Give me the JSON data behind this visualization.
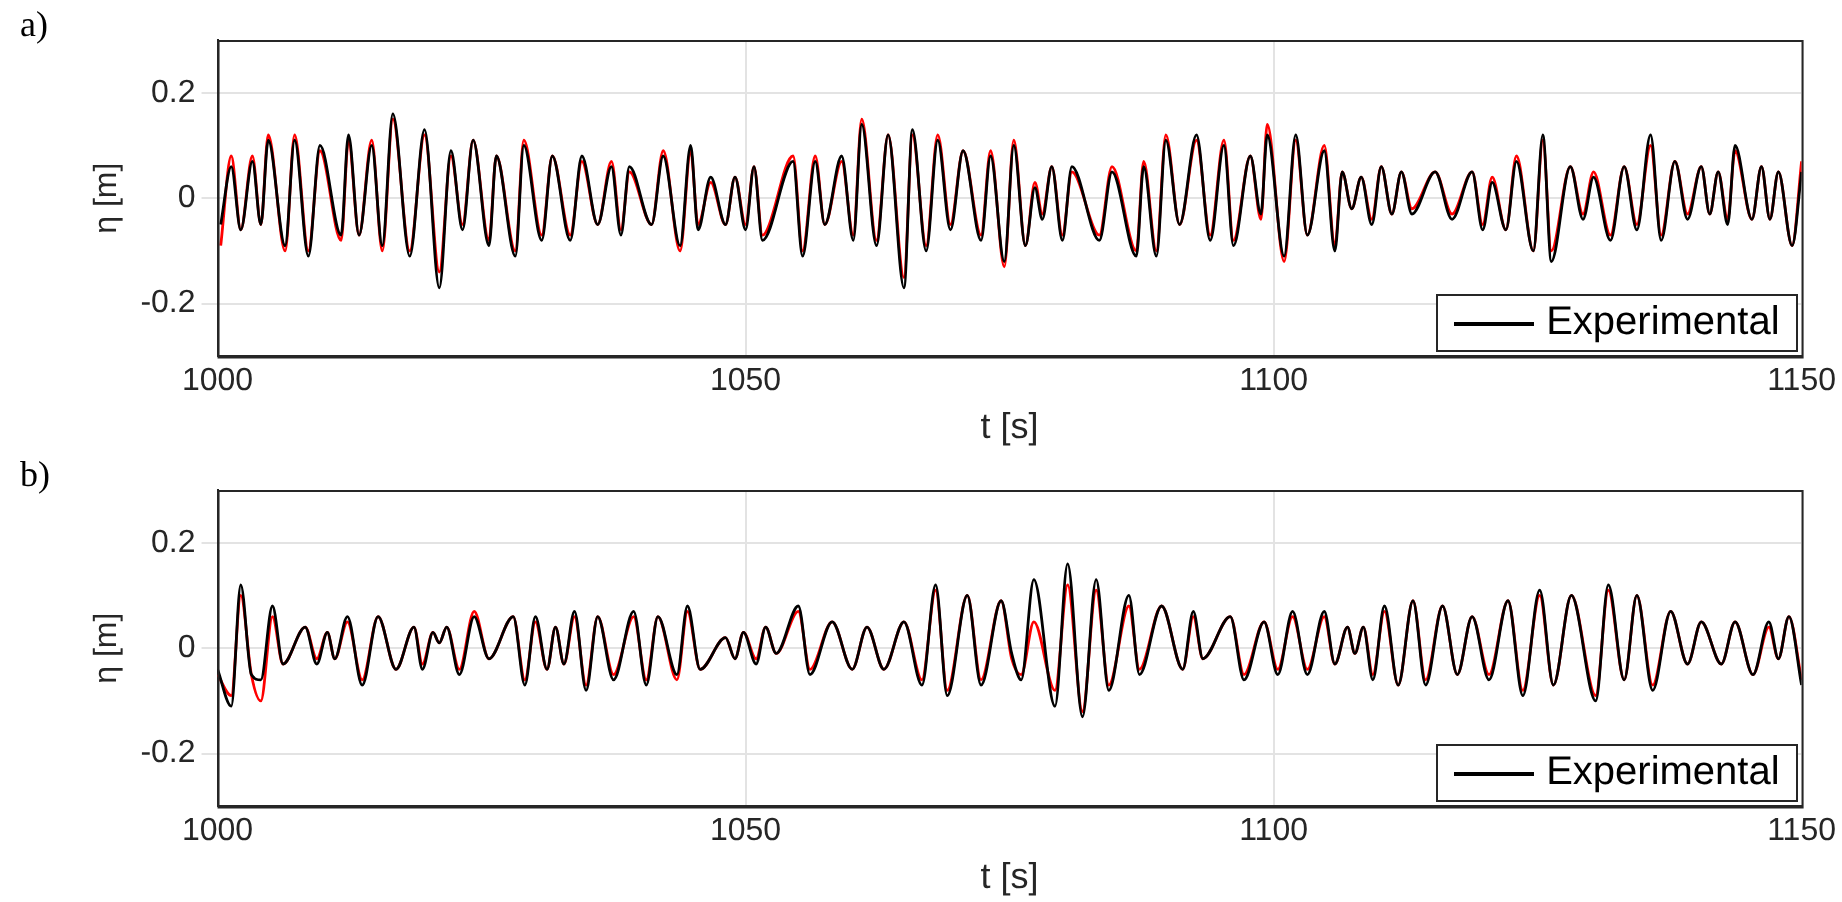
{
  "chart_data": [
    {
      "type": "line",
      "annotations": [
        "a)"
      ],
      "xlabel": "t [s]",
      "ylabel": "η [m]",
      "xlim": [
        1000,
        1150
      ],
      "ylim": [
        -0.3,
        0.3
      ],
      "xticks": [
        1000,
        1050,
        1100,
        1150
      ],
      "yticks": [
        -0.2,
        0,
        0.2
      ],
      "grid": true,
      "legend": "bottom right",
      "x": [
        1000.3,
        1001.3,
        1002.2,
        1003.3,
        1004.1,
        1004.8,
        1006.4,
        1007.3,
        1008.6,
        1009.7,
        1011.7,
        1012.4,
        1013.4,
        1014.6,
        1015.6,
        1016.6,
        1018.2,
        1019.6,
        1021.0,
        1022.1,
        1023.2,
        1024.2,
        1025.7,
        1026.4,
        1028.2,
        1029.0,
        1030.7,
        1031.7,
        1033.4,
        1034.5,
        1036.0,
        1037.3,
        1038.2,
        1039.0,
        1041.1,
        1042.2,
        1043.8,
        1044.8,
        1045.5,
        1046.7,
        1048.1,
        1049.0,
        1050.0,
        1050.8,
        1051.6,
        1054.5,
        1055.4,
        1056.6,
        1057.5,
        1059.1,
        1060.2,
        1061.0,
        1062.4,
        1063.5,
        1065.0,
        1065.8,
        1067.1,
        1068.2,
        1069.4,
        1070.6,
        1072.3,
        1073.2,
        1074.5,
        1075.4,
        1076.5,
        1077.4,
        1078.1,
        1079.0,
        1080.0,
        1080.9,
        1083.5,
        1084.7,
        1087.0,
        1087.7,
        1088.9,
        1089.8,
        1091.1,
        1092.7,
        1094.0,
        1095.3,
        1096.2,
        1097.8,
        1098.8,
        1099.4,
        1101.0,
        1102.1,
        1103.2,
        1104.8,
        1105.8,
        1106.5,
        1107.4,
        1108.3,
        1109.3,
        1110.2,
        1111.2,
        1112.1,
        1113.1,
        1115.3,
        1116.9,
        1118.8,
        1119.8,
        1120.7,
        1122.0,
        1123.0,
        1124.6,
        1125.5,
        1126.3,
        1128.1,
        1129.3,
        1130.3,
        1131.9,
        1133.2,
        1134.4,
        1135.7,
        1136.7,
        1138.0,
        1139.2,
        1140.5,
        1141.3,
        1142.1,
        1143.0,
        1143.7,
        1145.3,
        1146.2,
        1147.0,
        1147.8,
        1149.1,
        1150.0
      ],
      "series": [
        {
          "name": "Experimental",
          "color": "#000000",
          "values": [
            -0.05,
            0.06,
            -0.06,
            0.07,
            -0.05,
            0.11,
            -0.09,
            0.11,
            -0.11,
            0.1,
            -0.07,
            0.12,
            -0.07,
            0.1,
            -0.09,
            0.16,
            -0.11,
            0.13,
            -0.17,
            0.09,
            -0.06,
            0.11,
            -0.09,
            0.08,
            -0.11,
            0.1,
            -0.08,
            0.08,
            -0.08,
            0.08,
            -0.05,
            0.06,
            -0.07,
            0.06,
            -0.05,
            0.08,
            -0.09,
            0.1,
            -0.06,
            0.04,
            -0.05,
            0.04,
            -0.06,
            0.06,
            -0.08,
            0.07,
            -0.11,
            0.07,
            -0.05,
            0.08,
            -0.08,
            0.14,
            -0.09,
            0.12,
            -0.17,
            0.13,
            -0.1,
            0.11,
            -0.06,
            0.09,
            -0.08,
            0.08,
            -0.12,
            0.1,
            -0.09,
            0.02,
            -0.04,
            0.06,
            -0.08,
            0.06,
            -0.08,
            0.05,
            -0.11,
            0.06,
            -0.11,
            0.11,
            -0.05,
            0.12,
            -0.08,
            0.1,
            -0.09,
            0.08,
            -0.03,
            0.12,
            -0.11,
            0.12,
            -0.07,
            0.09,
            -0.1,
            0.05,
            -0.02,
            0.04,
            -0.05,
            0.06,
            -0.03,
            0.05,
            -0.03,
            0.05,
            -0.04,
            0.05,
            -0.06,
            0.03,
            -0.06,
            0.07,
            -0.1,
            0.12,
            -0.12,
            0.06,
            -0.04,
            0.04,
            -0.08,
            0.06,
            -0.06,
            0.12,
            -0.08,
            0.07,
            -0.04,
            0.06,
            -0.03,
            0.05,
            -0.05,
            0.1,
            -0.04,
            0.06,
            -0.04,
            0.05,
            -0.09,
            0.05
          ]
        },
        {
          "color": "#ff0000",
          "values": [
            -0.09,
            0.08,
            -0.06,
            0.08,
            -0.05,
            0.12,
            -0.1,
            0.12,
            -0.1,
            0.09,
            -0.08,
            0.11,
            -0.07,
            0.11,
            -0.1,
            0.15,
            -0.1,
            0.12,
            -0.14,
            0.08,
            -0.05,
            0.11,
            -0.08,
            0.08,
            -0.1,
            0.11,
            -0.07,
            0.08,
            -0.07,
            0.07,
            -0.05,
            0.07,
            -0.06,
            0.05,
            -0.05,
            0.09,
            -0.1,
            0.09,
            -0.05,
            0.03,
            -0.05,
            0.04,
            -0.05,
            0.06,
            -0.07,
            0.08,
            -0.1,
            0.08,
            -0.05,
            0.07,
            -0.07,
            0.15,
            -0.08,
            0.12,
            -0.15,
            0.12,
            -0.09,
            0.12,
            -0.05,
            0.09,
            -0.07,
            0.09,
            -0.13,
            0.11,
            -0.09,
            0.03,
            -0.03,
            0.06,
            -0.07,
            0.05,
            -0.07,
            0.06,
            -0.1,
            0.07,
            -0.1,
            0.12,
            -0.05,
            0.11,
            -0.07,
            0.11,
            -0.08,
            0.08,
            -0.04,
            0.14,
            -0.12,
            0.11,
            -0.07,
            0.1,
            -0.09,
            0.05,
            -0.02,
            0.04,
            -0.04,
            0.06,
            -0.03,
            0.05,
            -0.02,
            0.05,
            -0.03,
            0.05,
            -0.05,
            0.04,
            -0.06,
            0.08,
            -0.1,
            0.11,
            -0.1,
            0.06,
            -0.03,
            0.05,
            -0.07,
            0.06,
            -0.05,
            0.1,
            -0.07,
            0.07,
            -0.03,
            0.06,
            -0.03,
            0.05,
            -0.04,
            0.09,
            -0.04,
            0.06,
            -0.04,
            0.05,
            -0.09,
            0.07
          ]
        }
      ]
    },
    {
      "type": "line",
      "annotations": [
        "b)"
      ],
      "xlabel": "t [s]",
      "ylabel": "η [m]",
      "xlim": [
        1000,
        1150
      ],
      "ylim": [
        -0.3,
        0.3
      ],
      "xticks": [
        1000,
        1050,
        1100,
        1150
      ],
      "yticks": [
        -0.2,
        0,
        0.2
      ],
      "grid": true,
      "legend": "bottom right",
      "x": [
        1000.0,
        1001.3,
        1002.2,
        1003.2,
        1004.1,
        1005.2,
        1006.2,
        1008.3,
        1009.4,
        1010.4,
        1011.1,
        1012.3,
        1013.7,
        1015.2,
        1016.9,
        1018.6,
        1019.4,
        1020.4,
        1021.0,
        1021.7,
        1022.9,
        1024.3,
        1025.7,
        1028.0,
        1029.1,
        1030.1,
        1031.2,
        1032.0,
        1032.8,
        1033.8,
        1034.9,
        1036.0,
        1037.5,
        1039.4,
        1040.6,
        1041.7,
        1043.5,
        1044.5,
        1045.7,
        1048.1,
        1049.0,
        1049.8,
        1051.0,
        1051.9,
        1052.9,
        1055.0,
        1056.1,
        1058.2,
        1060.1,
        1061.5,
        1063.1,
        1065.0,
        1066.7,
        1068.0,
        1069.1,
        1071.0,
        1072.3,
        1074.2,
        1075.2,
        1076.1,
        1077.3,
        1079.3,
        1080.5,
        1081.9,
        1083.2,
        1084.4,
        1086.3,
        1087.3,
        1089.4,
        1091.4,
        1092.4,
        1093.3,
        1095.9,
        1097.2,
        1099.1,
        1100.4,
        1101.8,
        1103.2,
        1104.8,
        1105.8,
        1107.0,
        1107.7,
        1108.5,
        1109.4,
        1110.5,
        1111.8,
        1113.2,
        1114.4,
        1116.0,
        1117.4,
        1118.8,
        1120.4,
        1122.2,
        1123.6,
        1125.2,
        1126.5,
        1128.2,
        1130.5,
        1131.7,
        1133.2,
        1134.4,
        1135.9,
        1137.6,
        1139.2,
        1140.5,
        1142.4,
        1143.7,
        1145.4,
        1146.9,
        1147.8,
        1148.8,
        1150.0
      ],
      "series": [
        {
          "name": "Experimental",
          "color": "#000000",
          "values": [
            -0.04,
            -0.11,
            0.12,
            -0.05,
            -0.06,
            0.08,
            -0.03,
            0.04,
            -0.03,
            0.03,
            -0.02,
            0.06,
            -0.07,
            0.06,
            -0.04,
            0.04,
            -0.04,
            0.03,
            0.01,
            0.04,
            -0.05,
            0.06,
            -0.02,
            0.06,
            -0.07,
            0.06,
            -0.04,
            0.04,
            -0.03,
            0.07,
            -0.08,
            0.06,
            -0.06,
            0.07,
            -0.07,
            0.06,
            -0.05,
            0.08,
            -0.04,
            0.02,
            -0.02,
            0.03,
            -0.03,
            0.04,
            -0.01,
            0.08,
            -0.05,
            0.05,
            -0.04,
            0.04,
            -0.04,
            0.05,
            -0.07,
            0.12,
            -0.09,
            0.1,
            -0.07,
            0.09,
            -0.01,
            -0.06,
            0.13,
            -0.11,
            0.16,
            -0.13,
            0.13,
            -0.08,
            0.1,
            -0.05,
            0.08,
            -0.04,
            0.07,
            -0.02,
            0.06,
            -0.06,
            0.05,
            -0.05,
            0.07,
            -0.05,
            0.07,
            -0.03,
            0.04,
            -0.01,
            0.04,
            -0.06,
            0.08,
            -0.07,
            0.09,
            -0.07,
            0.08,
            -0.05,
            0.06,
            -0.06,
            0.09,
            -0.09,
            0.11,
            -0.07,
            0.1,
            -0.1,
            0.12,
            -0.06,
            0.1,
            -0.08,
            0.07,
            -0.03,
            0.05,
            -0.03,
            0.05,
            -0.05,
            0.05,
            -0.02,
            0.06,
            -0.07
          ]
        },
        {
          "color": "#ff0000",
          "values": [
            -0.05,
            -0.09,
            0.1,
            -0.05,
            -0.1,
            0.06,
            -0.03,
            0.04,
            -0.02,
            0.03,
            -0.02,
            0.05,
            -0.06,
            0.06,
            -0.04,
            0.04,
            -0.03,
            0.03,
            0.01,
            0.04,
            -0.04,
            0.07,
            -0.02,
            0.06,
            -0.06,
            0.05,
            -0.04,
            0.04,
            -0.03,
            0.06,
            -0.07,
            0.06,
            -0.05,
            0.06,
            -0.06,
            0.06,
            -0.06,
            0.07,
            -0.04,
            0.02,
            -0.02,
            0.03,
            -0.02,
            0.04,
            -0.01,
            0.07,
            -0.04,
            0.05,
            -0.04,
            0.04,
            -0.04,
            0.05,
            -0.06,
            0.11,
            -0.08,
            0.1,
            -0.06,
            0.09,
            -0.02,
            -0.05,
            0.05,
            -0.08,
            0.12,
            -0.12,
            0.11,
            -0.07,
            0.08,
            -0.04,
            0.08,
            -0.04,
            0.06,
            -0.02,
            0.06,
            -0.05,
            0.05,
            -0.04,
            0.06,
            -0.04,
            0.06,
            -0.03,
            0.04,
            -0.01,
            0.04,
            -0.05,
            0.07,
            -0.07,
            0.09,
            -0.06,
            0.08,
            -0.05,
            0.06,
            -0.05,
            0.09,
            -0.08,
            0.1,
            -0.07,
            0.1,
            -0.09,
            0.11,
            -0.06,
            0.1,
            -0.07,
            0.07,
            -0.03,
            0.05,
            -0.03,
            0.05,
            -0.05,
            0.04,
            -0.02,
            0.06,
            -0.06
          ]
        }
      ]
    }
  ]
}
